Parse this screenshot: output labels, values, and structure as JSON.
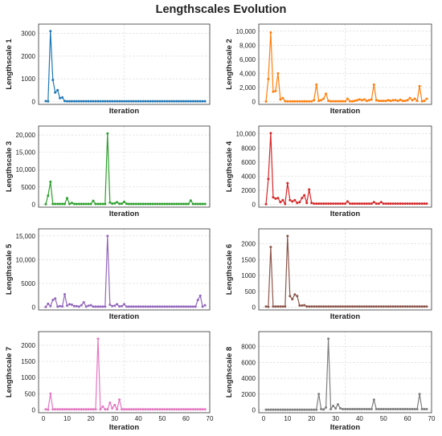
{
  "figure": {
    "title": "Lengthscales Evolution"
  },
  "style": {
    "grid_color": "#d5d5d5",
    "axis_color": "#333333",
    "text_color": "#222222"
  },
  "chart_data": [
    {
      "type": "line",
      "xlabel": "Iteration",
      "ylabel": "Lengthscale 1",
      "color": "#1f77b4",
      "ylim": [
        0,
        3100
      ],
      "xlim": [
        -2,
        70
      ],
      "yticks": [
        {
          "v": 0,
          "label": "0"
        },
        {
          "v": 1000,
          "label": "1000"
        },
        {
          "v": 2000,
          "label": "2000"
        },
        {
          "v": 3000,
          "label": "3000"
        }
      ],
      "xticks": [],
      "x": [
        1,
        2,
        3,
        4,
        5,
        6,
        7,
        8,
        9,
        10,
        11,
        12,
        13,
        14,
        15,
        16,
        17,
        18,
        19,
        20,
        21,
        22,
        23,
        24,
        25,
        26,
        27,
        28,
        29,
        30,
        31,
        32,
        33,
        34,
        35,
        36,
        37,
        38,
        39,
        40,
        41,
        42,
        43,
        44,
        45,
        46,
        47,
        48,
        49,
        50,
        51,
        52,
        53,
        54,
        55,
        56,
        57,
        58,
        59,
        60,
        61,
        62,
        63,
        64,
        65,
        66,
        67,
        68
      ],
      "values": [
        20,
        10,
        3100,
        950,
        400,
        500,
        150,
        180,
        20,
        15,
        15,
        15,
        15,
        15,
        15,
        15,
        15,
        15,
        15,
        15,
        15,
        15,
        15,
        15,
        15,
        15,
        15,
        15,
        15,
        15,
        15,
        15,
        15,
        15,
        15,
        15,
        15,
        15,
        15,
        15,
        15,
        15,
        15,
        15,
        15,
        15,
        15,
        15,
        15,
        15,
        15,
        15,
        15,
        15,
        15,
        15,
        15,
        15,
        15,
        15,
        15,
        15,
        15,
        15,
        15,
        15,
        15,
        15
      ]
    },
    {
      "type": "line",
      "xlabel": "Iteration",
      "ylabel": "Lengthscale 2",
      "color": "#ff7f0e",
      "ylim": [
        0,
        10000
      ],
      "xlim": [
        -2,
        70
      ],
      "yticks": [
        {
          "v": 0,
          "label": "0"
        },
        {
          "v": 2000,
          "label": "2,000"
        },
        {
          "v": 4000,
          "label": "4,000"
        },
        {
          "v": 6000,
          "label": "6,000"
        },
        {
          "v": 8000,
          "label": "8,000"
        },
        {
          "v": 10000,
          "label": "10,000"
        }
      ],
      "xticks": [],
      "x": [
        1,
        2,
        3,
        4,
        5,
        6,
        7,
        8,
        9,
        10,
        11,
        12,
        13,
        14,
        15,
        16,
        17,
        18,
        19,
        20,
        21,
        22,
        23,
        24,
        25,
        26,
        27,
        28,
        29,
        30,
        31,
        32,
        33,
        34,
        35,
        36,
        37,
        38,
        39,
        40,
        41,
        42,
        43,
        44,
        45,
        46,
        47,
        48,
        49,
        50,
        51,
        52,
        53,
        54,
        55,
        56,
        57,
        58,
        59,
        60,
        61,
        62,
        63,
        64,
        65,
        66,
        67,
        68
      ],
      "values": [
        10,
        3200,
        9800,
        1400,
        1500,
        4000,
        300,
        500,
        50,
        30,
        30,
        30,
        30,
        30,
        30,
        30,
        30,
        30,
        30,
        30,
        200,
        2400,
        100,
        200,
        400,
        1100,
        100,
        50,
        50,
        50,
        50,
        50,
        50,
        50,
        400,
        50,
        50,
        100,
        200,
        300,
        200,
        300,
        100,
        200,
        300,
        2400,
        200,
        100,
        100,
        100,
        100,
        200,
        100,
        200,
        200,
        100,
        250,
        100,
        100,
        200,
        500,
        200,
        400,
        100,
        2200,
        50,
        100,
        400
      ]
    },
    {
      "type": "line",
      "xlabel": "Iteration",
      "ylabel": "Lengthscale 3",
      "color": "#2ca02c",
      "ylim": [
        0,
        20500
      ],
      "xlim": [
        -2,
        70
      ],
      "yticks": [
        {
          "v": 0,
          "label": "0"
        },
        {
          "v": 5000,
          "label": "5000"
        },
        {
          "v": 10000,
          "label": "10,000"
        },
        {
          "v": 15000,
          "label": "15,000"
        },
        {
          "v": 20000,
          "label": "20,000"
        }
      ],
      "xticks": [],
      "x": [
        1,
        2,
        3,
        4,
        5,
        6,
        7,
        8,
        9,
        10,
        11,
        12,
        13,
        14,
        15,
        16,
        17,
        18,
        19,
        20,
        21,
        22,
        23,
        24,
        25,
        26,
        27,
        28,
        29,
        30,
        31,
        32,
        33,
        34,
        35,
        36,
        37,
        38,
        39,
        40,
        41,
        42,
        43,
        44,
        45,
        46,
        47,
        48,
        49,
        50,
        51,
        52,
        53,
        54,
        55,
        56,
        57,
        58,
        59,
        60,
        61,
        62,
        63,
        64,
        65,
        66,
        67,
        68
      ],
      "values": [
        50,
        2500,
        6500,
        100,
        100,
        100,
        100,
        100,
        100,
        1800,
        100,
        400,
        100,
        100,
        100,
        100,
        100,
        100,
        100,
        100,
        1000,
        100,
        100,
        100,
        100,
        100,
        20400,
        500,
        200,
        300,
        600,
        150,
        200,
        700,
        150,
        100,
        100,
        100,
        100,
        100,
        100,
        100,
        100,
        100,
        100,
        100,
        100,
        100,
        100,
        100,
        100,
        100,
        100,
        100,
        100,
        100,
        100,
        100,
        100,
        100,
        100,
        1100,
        100,
        100,
        100,
        100,
        100,
        100
      ]
    },
    {
      "type": "line",
      "xlabel": "Iteration",
      "ylabel": "Lengthscale 4",
      "color": "#d62728",
      "ylim": [
        0,
        10100
      ],
      "xlim": [
        -2,
        70
      ],
      "yticks": [
        {
          "v": 0,
          "label": "0"
        },
        {
          "v": 2000,
          "label": "2000"
        },
        {
          "v": 4000,
          "label": "4000"
        },
        {
          "v": 6000,
          "label": "6000"
        },
        {
          "v": 8000,
          "label": "8000"
        },
        {
          "v": 10000,
          "label": "10,000"
        }
      ],
      "xticks": [],
      "x": [
        1,
        2,
        3,
        4,
        5,
        6,
        7,
        8,
        9,
        10,
        11,
        12,
        13,
        14,
        15,
        16,
        17,
        18,
        19,
        20,
        21,
        22,
        23,
        24,
        25,
        26,
        27,
        28,
        29,
        30,
        31,
        32,
        33,
        34,
        35,
        36,
        37,
        38,
        39,
        40,
        41,
        42,
        43,
        44,
        45,
        46,
        47,
        48,
        49,
        50,
        51,
        52,
        53,
        54,
        55,
        56,
        57,
        58,
        59,
        60,
        61,
        62,
        63,
        64,
        65,
        66,
        67,
        68
      ],
      "values": [
        30,
        3600,
        10100,
        1000,
        800,
        900,
        300,
        600,
        50,
        3000,
        600,
        400,
        600,
        200,
        300,
        900,
        1300,
        200,
        2100,
        200,
        100,
        100,
        100,
        100,
        100,
        100,
        100,
        100,
        100,
        100,
        100,
        100,
        100,
        100,
        400,
        100,
        100,
        100,
        100,
        100,
        100,
        100,
        100,
        100,
        100,
        300,
        100,
        100,
        300,
        100,
        100,
        100,
        100,
        100,
        100,
        100,
        100,
        100,
        100,
        100,
        100,
        100,
        100,
        100,
        100,
        100,
        100,
        100
      ]
    },
    {
      "type": "line",
      "xlabel": "Iteration",
      "ylabel": "Lengthscale 5",
      "color": "#9467bd",
      "ylim": [
        0,
        15000
      ],
      "xlim": [
        -2,
        70
      ],
      "yticks": [
        {
          "v": 0,
          "label": "0"
        },
        {
          "v": 5000,
          "label": "5000"
        },
        {
          "v": 10000,
          "label": "10,000"
        },
        {
          "v": 15000,
          "label": "15,000"
        }
      ],
      "xticks": [],
      "x": [
        1,
        2,
        3,
        4,
        5,
        6,
        7,
        8,
        9,
        10,
        11,
        12,
        13,
        14,
        15,
        16,
        17,
        18,
        19,
        20,
        21,
        22,
        23,
        24,
        25,
        26,
        27,
        28,
        29,
        30,
        31,
        32,
        33,
        34,
        35,
        36,
        37,
        38,
        39,
        40,
        41,
        42,
        43,
        44,
        45,
        46,
        47,
        48,
        49,
        50,
        51,
        52,
        53,
        54,
        55,
        56,
        57,
        58,
        59,
        60,
        61,
        62,
        63,
        64,
        65,
        66,
        67,
        68
      ],
      "values": [
        50,
        700,
        200,
        1500,
        1800,
        100,
        200,
        150,
        2700,
        300,
        600,
        500,
        200,
        200,
        100,
        400,
        1000,
        100,
        300,
        400,
        100,
        100,
        100,
        100,
        100,
        100,
        15000,
        500,
        200,
        300,
        600,
        150,
        200,
        600,
        100,
        100,
        100,
        100,
        100,
        100,
        100,
        100,
        100,
        100,
        100,
        100,
        100,
        100,
        100,
        100,
        100,
        100,
        100,
        100,
        100,
        100,
        100,
        100,
        100,
        100,
        100,
        100,
        100,
        100,
        1500,
        2400,
        100,
        400
      ]
    },
    {
      "type": "line",
      "xlabel": "Iteration",
      "ylabel": "Lengthscale 6",
      "color": "#8c564b",
      "ylim": [
        0,
        2250
      ],
      "xlim": [
        -2,
        70
      ],
      "yticks": [
        {
          "v": 0,
          "label": "0"
        },
        {
          "v": 500,
          "label": "500"
        },
        {
          "v": 1000,
          "label": "1000"
        },
        {
          "v": 1500,
          "label": "1500"
        },
        {
          "v": 2000,
          "label": "2000"
        }
      ],
      "xticks": [],
      "x": [
        1,
        2,
        3,
        4,
        5,
        6,
        7,
        8,
        9,
        10,
        11,
        12,
        13,
        14,
        15,
        16,
        17,
        18,
        19,
        20,
        21,
        22,
        23,
        24,
        25,
        26,
        27,
        28,
        29,
        30,
        31,
        32,
        33,
        34,
        35,
        36,
        37,
        38,
        39,
        40,
        41,
        42,
        43,
        44,
        45,
        46,
        47,
        48,
        49,
        50,
        51,
        52,
        53,
        54,
        55,
        56,
        57,
        58,
        59,
        60,
        61,
        62,
        63,
        64,
        65,
        66,
        67,
        68
      ],
      "values": [
        20,
        10,
        1900,
        20,
        20,
        20,
        20,
        20,
        20,
        2250,
        350,
        250,
        400,
        350,
        50,
        50,
        60,
        20,
        20,
        20,
        20,
        20,
        20,
        20,
        20,
        20,
        20,
        20,
        20,
        20,
        20,
        20,
        20,
        20,
        20,
        20,
        20,
        20,
        20,
        20,
        20,
        20,
        20,
        20,
        20,
        20,
        20,
        20,
        20,
        20,
        20,
        20,
        20,
        20,
        20,
        20,
        20,
        20,
        20,
        20,
        20,
        20,
        20,
        20,
        20,
        20,
        20,
        20
      ]
    },
    {
      "type": "line",
      "xlabel": "Iteration",
      "ylabel": "Lengthscale 7",
      "color": "#e377c2",
      "ylim": [
        0,
        2200
      ],
      "xlim": [
        -2,
        70
      ],
      "yticks": [
        {
          "v": 0,
          "label": "0"
        },
        {
          "v": 500,
          "label": "500"
        },
        {
          "v": 1000,
          "label": "1000"
        },
        {
          "v": 1500,
          "label": "1500"
        },
        {
          "v": 2000,
          "label": "2000"
        }
      ],
      "xticks": [
        {
          "v": 0,
          "label": "0"
        },
        {
          "v": 10,
          "label": "10"
        },
        {
          "v": 20,
          "label": "20"
        },
        {
          "v": 30,
          "label": "30"
        },
        {
          "v": 40,
          "label": "40"
        },
        {
          "v": 50,
          "label": "50"
        },
        {
          "v": 60,
          "label": "60"
        },
        {
          "v": 70,
          "label": "70"
        }
      ],
      "x": [
        1,
        2,
        3,
        4,
        5,
        6,
        7,
        8,
        9,
        10,
        11,
        12,
        13,
        14,
        15,
        16,
        17,
        18,
        19,
        20,
        21,
        22,
        23,
        24,
        25,
        26,
        27,
        28,
        29,
        30,
        31,
        32,
        33,
        34,
        35,
        36,
        37,
        38,
        39,
        40,
        41,
        42,
        43,
        44,
        45,
        46,
        47,
        48,
        49,
        50,
        51,
        52,
        53,
        54,
        55,
        56,
        57,
        58,
        59,
        60,
        61,
        62,
        63,
        64,
        65,
        66,
        67,
        68
      ],
      "values": [
        20,
        10,
        500,
        20,
        20,
        20,
        20,
        20,
        20,
        20,
        20,
        20,
        20,
        20,
        20,
        20,
        20,
        20,
        20,
        20,
        20,
        20,
        2200,
        20,
        100,
        20,
        20,
        220,
        50,
        150,
        20,
        320,
        20,
        20,
        20,
        20,
        20,
        20,
        20,
        20,
        20,
        20,
        20,
        20,
        20,
        20,
        20,
        20,
        20,
        20,
        20,
        20,
        20,
        20,
        20,
        20,
        20,
        20,
        20,
        20,
        20,
        20,
        20,
        20,
        20,
        20,
        20,
        20
      ]
    },
    {
      "type": "line",
      "xlabel": "Iteration",
      "ylabel": "Lengthscale 8",
      "color": "#7f7f7f",
      "ylim": [
        0,
        9000
      ],
      "xlim": [
        -2,
        70
      ],
      "yticks": [
        {
          "v": 0,
          "label": "0"
        },
        {
          "v": 2000,
          "label": "2000"
        },
        {
          "v": 4000,
          "label": "4000"
        },
        {
          "v": 6000,
          "label": "6000"
        },
        {
          "v": 8000,
          "label": "8000"
        }
      ],
      "xticks": [
        {
          "v": 0,
          "label": "0"
        },
        {
          "v": 10,
          "label": "10"
        },
        {
          "v": 20,
          "label": "20"
        },
        {
          "v": 30,
          "label": "30"
        },
        {
          "v": 40,
          "label": "40"
        },
        {
          "v": 50,
          "label": "50"
        },
        {
          "v": 60,
          "label": "60"
        },
        {
          "v": 70,
          "label": "70"
        }
      ],
      "x": [
        1,
        2,
        3,
        4,
        5,
        6,
        7,
        8,
        9,
        10,
        11,
        12,
        13,
        14,
        15,
        16,
        17,
        18,
        19,
        20,
        21,
        22,
        23,
        24,
        25,
        26,
        27,
        28,
        29,
        30,
        31,
        32,
        33,
        34,
        35,
        36,
        37,
        38,
        39,
        40,
        41,
        42,
        43,
        44,
        45,
        46,
        47,
        48,
        49,
        50,
        51,
        52,
        53,
        54,
        55,
        56,
        57,
        58,
        59,
        60,
        61,
        62,
        63,
        64,
        65,
        66,
        67,
        68
      ],
      "values": [
        30,
        20,
        20,
        20,
        20,
        20,
        20,
        20,
        20,
        20,
        20,
        20,
        20,
        20,
        20,
        20,
        20,
        20,
        20,
        20,
        20,
        20,
        2000,
        100,
        50,
        300,
        9000,
        100,
        500,
        200,
        700,
        200,
        100,
        100,
        100,
        100,
        100,
        100,
        100,
        100,
        100,
        100,
        100,
        100,
        100,
        1300,
        100,
        100,
        100,
        100,
        100,
        100,
        100,
        100,
        100,
        100,
        100,
        100,
        100,
        100,
        100,
        100,
        100,
        100,
        2000,
        100,
        100,
        100
      ]
    }
  ]
}
